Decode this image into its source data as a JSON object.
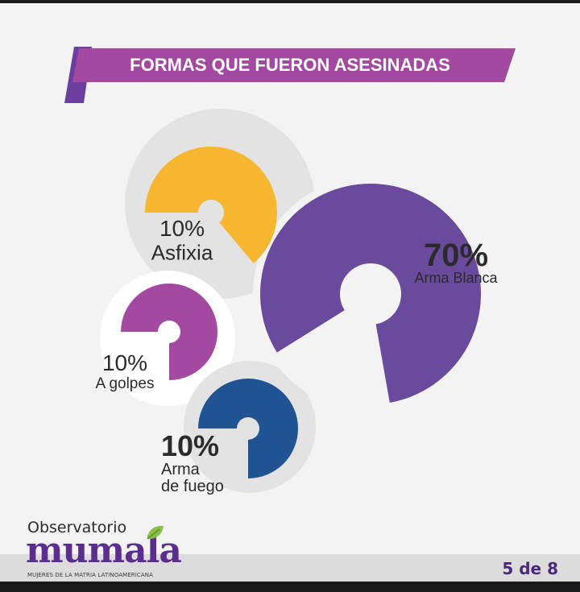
{
  "header": {
    "title": "FORMAS QUE FUERON ASESINADAS"
  },
  "colors": {
    "title_bar": "#a34aa0",
    "title_bar_dark": "#6b3fa0",
    "asfixia": "#f7b731",
    "arma_blanca": "#6a4a9c",
    "a_golpes": "#a34aa0",
    "arma_de_fuego": "#1f5392",
    "circle_bg": "#e3e3e3"
  },
  "chart_data": {
    "type": "pie",
    "title": "FORMAS QUE FUERON ASESINADAS",
    "series": [
      {
        "value_label": "10%",
        "category_lines": [
          "Asfixia"
        ],
        "value": 10,
        "color": "#f7b731"
      },
      {
        "value_label": "70%",
        "category_lines": [
          "Arma Blanca"
        ],
        "value": 70,
        "color": "#6a4a9c"
      },
      {
        "value_label": "10%",
        "category_lines": [
          "A golpes"
        ],
        "value": 10,
        "color": "#a34aa0"
      },
      {
        "value_label": "10%",
        "category_lines": [
          "Arma",
          "de fuego"
        ],
        "value": 10,
        "color": "#1f5392"
      }
    ]
  },
  "logo": {
    "line1": "Observatorio",
    "brand": "mumala",
    "tagline": "MUJERES DE LA MATRIA LATINOAMERICANA"
  },
  "pagination": {
    "label": "5 de 8"
  }
}
